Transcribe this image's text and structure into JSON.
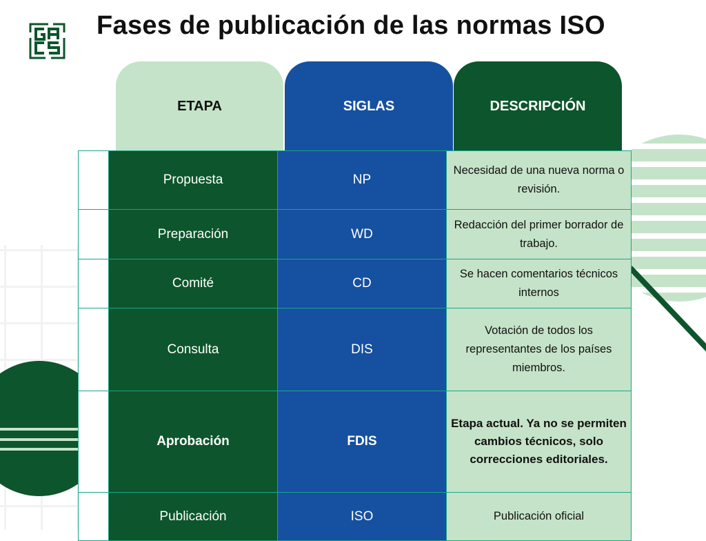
{
  "title": "Fases de publicación de las normas ISO",
  "logo": {
    "text": "GACS"
  },
  "colors": {
    "dark_green": "#0d552c",
    "blue": "#1650a0",
    "light_green": "#c5e3c8",
    "border": "#1aa58a"
  },
  "headers": [
    "ETAPA",
    "SIGLAS",
    "DESCRIPCIÓN"
  ],
  "rows": [
    {
      "etapa": "Propuesta",
      "siglas": "NP",
      "descripcion": "Necesidad de una nueva norma o revisión.",
      "highlight": false
    },
    {
      "etapa": "Preparación",
      "siglas": "WD",
      "descripcion": "Redacción del primer borrador de trabajo.",
      "highlight": false
    },
    {
      "etapa": "Comité",
      "siglas": "CD",
      "descripcion": "Se hacen comentarios técnicos internos",
      "highlight": false
    },
    {
      "etapa": "Consulta",
      "siglas": "DIS",
      "descripcion": "Votación de todos los representantes de los países miembros.",
      "highlight": false
    },
    {
      "etapa": "Aprobación",
      "siglas": "FDIS",
      "descripcion": "Etapa actual. Ya no se permiten cambios técnicos, solo correcciones editoriales.",
      "highlight": true
    },
    {
      "etapa": "Publicación",
      "siglas": "ISO",
      "descripcion": "Publicación oficial",
      "highlight": false
    }
  ]
}
